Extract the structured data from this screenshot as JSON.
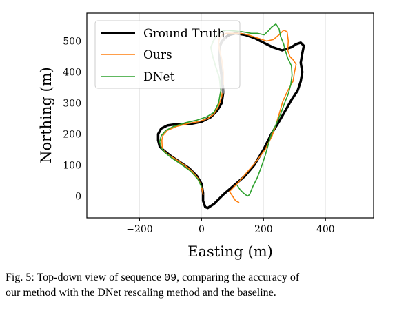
{
  "chart_data": {
    "type": "line",
    "title": "",
    "xlabel": "Easting (m)",
    "ylabel": "Northing (m)",
    "xlim": [
      -370,
      555
    ],
    "ylim": [
      -70,
      590
    ],
    "xticks": [
      -200,
      0,
      200,
      400
    ],
    "yticks": [
      0,
      100,
      200,
      300,
      400,
      500
    ],
    "grid": true,
    "legend_position": "top-left",
    "series": [
      {
        "name": "Ground Truth",
        "color": "#000000",
        "faded_color": "#808080",
        "points": [
          [
            12,
            -35
          ],
          [
            20,
            -38
          ],
          [
            40,
            -25
          ],
          [
            70,
            5
          ],
          [
            105,
            35
          ],
          [
            140,
            65
          ],
          [
            170,
            100
          ],
          [
            200,
            150
          ],
          [
            225,
            200
          ],
          [
            250,
            240
          ],
          [
            270,
            275
          ],
          [
            290,
            310
          ],
          [
            310,
            340
          ],
          [
            320,
            370
          ],
          [
            325,
            400
          ],
          [
            320,
            430
          ],
          [
            325,
            460
          ],
          [
            330,
            485
          ],
          [
            320,
            495
          ],
          [
            305,
            490
          ],
          [
            290,
            480
          ],
          [
            260,
            470
          ],
          [
            230,
            480
          ],
          [
            200,
            495
          ],
          [
            170,
            510
          ],
          [
            140,
            520
          ],
          [
            110,
            525
          ],
          [
            90,
            520
          ],
          [
            75,
            510
          ],
          [
            65,
            497
          ],
          [
            58,
            482
          ],
          [
            58,
            450
          ],
          [
            62,
            410
          ],
          [
            67,
            370
          ],
          [
            70,
            335
          ],
          [
            65,
            300
          ],
          [
            50,
            275
          ],
          [
            30,
            255
          ],
          [
            0,
            240
          ],
          [
            -40,
            232
          ],
          [
            -80,
            232
          ],
          [
            -110,
            228
          ],
          [
            -130,
            218
          ],
          [
            -140,
            200
          ],
          [
            -140,
            180
          ],
          [
            -135,
            160
          ],
          [
            -125,
            150
          ],
          [
            -100,
            130
          ],
          [
            -70,
            110
          ],
          [
            -40,
            90
          ],
          [
            -15,
            65
          ],
          [
            0,
            40
          ],
          [
            5,
            10
          ],
          [
            5,
            -15
          ],
          [
            12,
            -35
          ]
        ]
      },
      {
        "name": "Ours",
        "color": "#ff7f0e",
        "faded_color": "#ffbf86",
        "points": [
          [
            120,
            -20
          ],
          [
            110,
            -15
          ],
          [
            100,
            0
          ],
          [
            90,
            15
          ],
          [
            115,
            40
          ],
          [
            145,
            75
          ],
          [
            175,
            110
          ],
          [
            205,
            150
          ],
          [
            228,
            195
          ],
          [
            240,
            230
          ],
          [
            252,
            270
          ],
          [
            262,
            305
          ],
          [
            278,
            340
          ],
          [
            295,
            370
          ],
          [
            300,
            400
          ],
          [
            305,
            425
          ],
          [
            295,
            440
          ],
          [
            285,
            450
          ],
          [
            278,
            470
          ],
          [
            280,
            500
          ],
          [
            276,
            530
          ],
          [
            265,
            535
          ],
          [
            250,
            520
          ],
          [
            232,
            505
          ],
          [
            210,
            500
          ],
          [
            180,
            510
          ],
          [
            150,
            520
          ],
          [
            125,
            525
          ],
          [
            100,
            525
          ],
          [
            80,
            525
          ],
          [
            65,
            518
          ],
          [
            58,
            510
          ],
          [
            55,
            495
          ],
          [
            58,
            470
          ],
          [
            65,
            440
          ],
          [
            70,
            400
          ],
          [
            70,
            360
          ],
          [
            65,
            320
          ],
          [
            55,
            290
          ],
          [
            40,
            265
          ],
          [
            20,
            250
          ],
          [
            -10,
            240
          ],
          [
            -40,
            235
          ],
          [
            -80,
            225
          ],
          [
            -110,
            212
          ],
          [
            -125,
            195
          ],
          [
            -128,
            180
          ],
          [
            -127,
            160
          ],
          [
            -125,
            150
          ],
          [
            -110,
            135
          ],
          [
            -85,
            120
          ],
          [
            -55,
            100
          ],
          [
            -30,
            80
          ],
          [
            -10,
            55
          ],
          [
            0,
            30
          ],
          [
            5,
            5
          ]
        ]
      },
      {
        "name": "DNet",
        "color": "#2ca02c",
        "faded_color": "#96d096",
        "points": [
          [
            115,
            35
          ],
          [
            125,
            20
          ],
          [
            135,
            10
          ],
          [
            148,
            0
          ],
          [
            155,
            5
          ],
          [
            165,
            30
          ],
          [
            180,
            60
          ],
          [
            195,
            100
          ],
          [
            205,
            130
          ],
          [
            215,
            165
          ],
          [
            225,
            200
          ],
          [
            240,
            230
          ],
          [
            255,
            265
          ],
          [
            268,
            300
          ],
          [
            280,
            330
          ],
          [
            288,
            360
          ],
          [
            292,
            390
          ],
          [
            290,
            420
          ],
          [
            278,
            445
          ],
          [
            270,
            470
          ],
          [
            265,
            490
          ],
          [
            255,
            515
          ],
          [
            250,
            540
          ],
          [
            240,
            555
          ],
          [
            226,
            545
          ],
          [
            218,
            535
          ],
          [
            202,
            520
          ],
          [
            180,
            525
          ],
          [
            160,
            525
          ],
          [
            130,
            530
          ],
          [
            110,
            532
          ],
          [
            80,
            535
          ],
          [
            60,
            530
          ],
          [
            50,
            520
          ],
          [
            38,
            500
          ],
          [
            30,
            480
          ],
          [
            35,
            455
          ],
          [
            45,
            420
          ],
          [
            58,
            380
          ],
          [
            62,
            340
          ],
          [
            55,
            300
          ],
          [
            40,
            270
          ],
          [
            15,
            255
          ],
          [
            -15,
            245
          ],
          [
            -50,
            237
          ],
          [
            -90,
            225
          ],
          [
            -115,
            212
          ],
          [
            -130,
            195
          ],
          [
            -135,
            175
          ],
          [
            -130,
            155
          ],
          [
            -118,
            140
          ],
          [
            -95,
            122
          ],
          [
            -65,
            102
          ],
          [
            -35,
            80
          ],
          [
            -12,
            55
          ],
          [
            0,
            30
          ]
        ]
      }
    ]
  },
  "caption": {
    "prefix": "Fig. 5: Top-down view of sequence ",
    "sequence": "09",
    "line1_suffix": ", comparing the accuracy of",
    "line2": "our method with the DNet rescaling method and the baseline."
  }
}
